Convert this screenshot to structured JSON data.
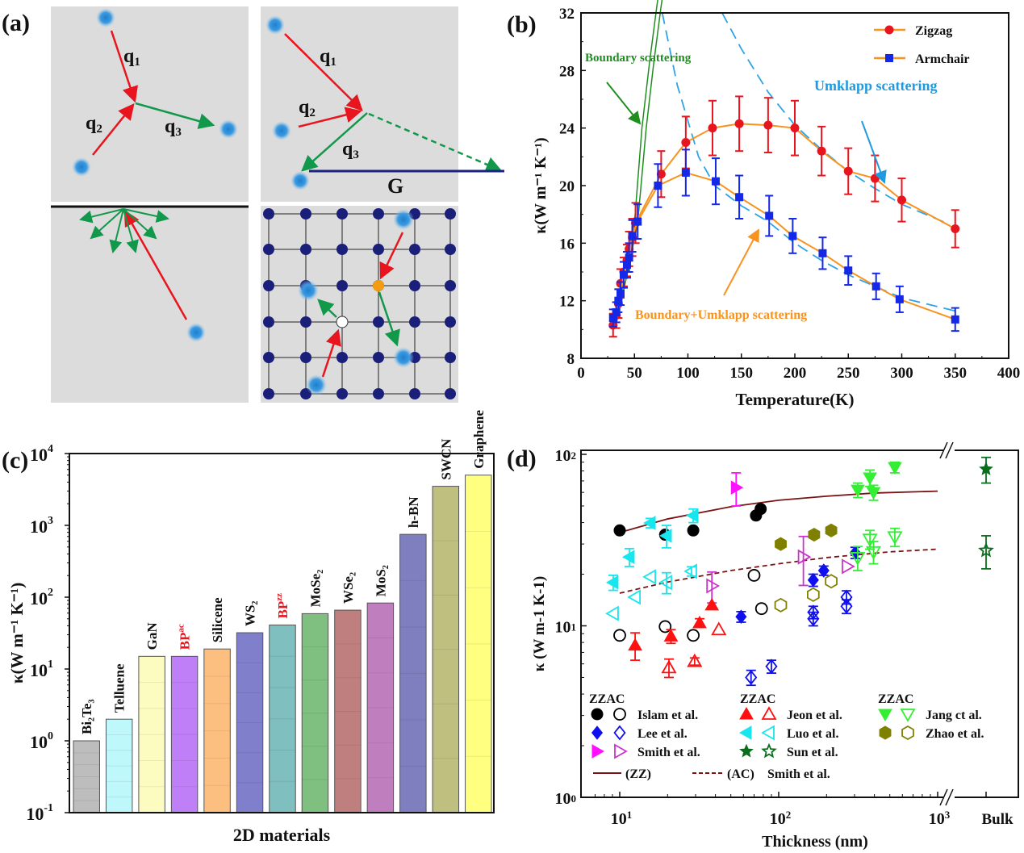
{
  "panel_labels": {
    "a": "(a)",
    "b": "(b)",
    "c": "(c)",
    "d": "(d)"
  },
  "diagram_a": {
    "labels": {
      "q": "q",
      "s1": "1",
      "s2": "2",
      "s3": "3",
      "G": "G"
    },
    "colors": {
      "incoming": "#e8141e",
      "outgoing": "#12984a",
      "reciprocal": "#1a237e",
      "lattice": "#1a1f7a",
      "phonon": "#2f8fd6",
      "defect_orange": "#f39c12"
    }
  },
  "chart_data": [
    {
      "id": "b",
      "type": "line",
      "title": "",
      "xlabel": "Temperature(K)",
      "ylabel": "κ(W m⁻¹ K⁻¹)",
      "xlim": [
        0,
        400
      ],
      "ylim": [
        8,
        32
      ],
      "xticks": [
        "0",
        "50",
        "100",
        "150",
        "200",
        "250",
        "300",
        "350",
        "400"
      ],
      "yticks": [
        "8",
        "12",
        "16",
        "20",
        "24",
        "28",
        "32"
      ],
      "legend_position": "top-right",
      "series": [
        {
          "name": "Zigzag",
          "color": "#e8141e",
          "line_color": "#f7931e",
          "marker": "circle",
          "x": [
            30,
            33,
            35,
            37,
            40,
            43,
            45,
            48,
            51,
            75,
            98,
            123,
            148,
            175,
            200,
            225,
            250,
            275,
            300,
            350
          ],
          "y": [
            10.3,
            11.0,
            11.8,
            13.2,
            14.0,
            14.8,
            15.6,
            16.4,
            17.4,
            20.8,
            23.0,
            24.0,
            24.3,
            24.2,
            24.0,
            22.4,
            21.0,
            20.5,
            19.0,
            17.0
          ],
          "err": [
            0.8,
            0.9,
            1.0,
            1.0,
            1.0,
            1.1,
            1.2,
            1.3,
            1.4,
            1.6,
            1.8,
            1.9,
            1.9,
            1.9,
            1.9,
            1.7,
            1.6,
            1.6,
            1.5,
            1.3
          ]
        },
        {
          "name": "Armchair",
          "color": "#1428e8",
          "line_color": "#f7931e",
          "marker": "square",
          "x": [
            30,
            33,
            35,
            37,
            40,
            43,
            45,
            48,
            53,
            72,
            98,
            126,
            148,
            176,
            198,
            226,
            250,
            276,
            298,
            350
          ],
          "y": [
            10.8,
            11.2,
            12.0,
            12.5,
            13.8,
            14.5,
            15.0,
            16.5,
            17.5,
            20.0,
            20.9,
            20.3,
            19.2,
            17.9,
            16.5,
            15.3,
            14.1,
            13.0,
            12.1,
            10.7
          ],
          "err": [
            0.6,
            0.7,
            0.8,
            0.8,
            0.9,
            0.9,
            1.0,
            1.1,
            1.2,
            1.5,
            1.6,
            1.6,
            1.5,
            1.4,
            1.2,
            1.1,
            1.0,
            0.9,
            0.9,
            0.8
          ]
        }
      ],
      "fits": [
        {
          "name": "boundary-1",
          "color": "#1e8f1e",
          "style": "solid",
          "x": [
            30,
            40,
            50,
            57,
            64,
            71,
            73
          ],
          "y": [
            10.4,
            13.8,
            17.4,
            24.0,
            28.5,
            32.5,
            33.5
          ]
        },
        {
          "name": "boundary-2",
          "color": "#1e8f1e",
          "style": "solid",
          "x": [
            33,
            43,
            53,
            61,
            68,
            75,
            77
          ],
          "y": [
            10.4,
            13.8,
            17.4,
            24.0,
            28.5,
            32.5,
            33.5
          ]
        },
        {
          "name": "umklapp-armchair",
          "color": "#2ea3e6",
          "style": "dashed",
          "x": [
            76,
            90,
            100,
            110,
            125,
            150,
            175,
            200,
            225,
            250,
            275,
            300,
            355
          ],
          "y": [
            32,
            27,
            24.5,
            22,
            20,
            18.6,
            17.5,
            16,
            14.8,
            13.8,
            13,
            12.2,
            11.2
          ]
        },
        {
          "name": "umklapp-zigzag",
          "color": "#2ea3e6",
          "style": "dashed",
          "x": [
            132,
            150,
            175,
            200,
            225,
            250,
            275,
            300,
            345
          ],
          "y": [
            32,
            29.5,
            26.5,
            24.2,
            22.5,
            21,
            19.8,
            18.7,
            17.3
          ]
        }
      ],
      "annotations": [
        {
          "text": "Boundary scattering",
          "color": "#1e8f1e"
        },
        {
          "text": "Umklapp scattering",
          "color": "#1e9be0"
        },
        {
          "text": "Boundary+Umklapp scattering",
          "color": "#f7931e"
        }
      ]
    },
    {
      "id": "c",
      "type": "bar",
      "title": "",
      "xlabel": "2D materials",
      "ylabel": "κ(W m⁻¹ K⁻¹)",
      "yscale": "log",
      "ylim": [
        0.1,
        10000
      ],
      "yticks": [
        {
          "base": "10",
          "exp": "-1"
        },
        {
          "base": "10",
          "exp": "0"
        },
        {
          "base": "10",
          "exp": "1"
        },
        {
          "base": "10",
          "exp": "2"
        },
        {
          "base": "10",
          "exp": "3"
        },
        {
          "base": "10",
          "exp": "4"
        }
      ],
      "categories": [
        {
          "name": "Bi₂Te₃",
          "sup": "",
          "label_color": "#111111",
          "color": "#bdbdbd"
        },
        {
          "name": "Telluene",
          "sup": "",
          "label_color": "#111111",
          "color": "#bff8fb"
        },
        {
          "name": "GaN",
          "sup": "",
          "label_color": "#111111",
          "color": "#fdfcc0"
        },
        {
          "name": "BP",
          "sup": "ac",
          "label_color": "#e8141e",
          "color": "#bf7ff7"
        },
        {
          "name": "Silicene",
          "sup": "",
          "label_color": "#111111",
          "color": "#fdbf80"
        },
        {
          "name": "WS₂",
          "sup": "",
          "label_color": "#111111",
          "color": "#7f7fcc"
        },
        {
          "name": "BP",
          "sup": "zz",
          "label_color": "#e8141e",
          "color": "#7fbfbf"
        },
        {
          "name": "MoSe₂",
          "sup": "",
          "label_color": "#111111",
          "color": "#7fbf7f"
        },
        {
          "name": "WSe₂",
          "sup": "",
          "label_color": "#111111",
          "color": "#bf7f7f"
        },
        {
          "name": "MoS₂",
          "sup": "",
          "label_color": "#111111",
          "color": "#bf7fbf"
        },
        {
          "name": "h-BN",
          "sup": "",
          "label_color": "#111111",
          "color": "#7f7fbf"
        },
        {
          "name": "SWCN",
          "sup": "",
          "label_color": "#111111",
          "color": "#bfbf80"
        },
        {
          "name": "Graphene",
          "sup": "",
          "label_color": "#111111",
          "color": "#ffff80"
        }
      ],
      "values": [
        1,
        2,
        15,
        15,
        19,
        32,
        41,
        59,
        66,
        83,
        750,
        3500,
        5000
      ]
    },
    {
      "id": "d",
      "type": "scatter",
      "title": "",
      "xlabel": "Thickness (nm)",
      "ylabel": "κ (W m-1 K-1)",
      "xscale": "log",
      "yscale": "log",
      "xlim": [
        6,
        1000
      ],
      "ylim": [
        1,
        100
      ],
      "xticks": [
        {
          "base": "10",
          "exp": "1"
        },
        {
          "base": "10",
          "exp": "2"
        },
        {
          "base": "10",
          "exp": "3"
        }
      ],
      "bulk_label": "Bulk",
      "yticks": [
        {
          "base": "10",
          "exp": "0"
        },
        {
          "base": "10",
          "exp": "1"
        },
        {
          "base": "10",
          "exp": "2"
        }
      ],
      "legend_position": "bottom-inside",
      "legend_header": "ZZAC",
      "groups": [
        {
          "name": "Islam et al.",
          "color": "#000000",
          "marker": "circle",
          "zz": [
            [
              10,
              36
            ],
            [
              19.3,
              34
            ],
            [
              29,
              36
            ],
            [
              72,
              44
            ],
            [
              77,
              48
            ]
          ],
          "ac": [
            [
              10,
              8.8
            ],
            [
              19.3,
              9.9
            ],
            [
              29,
              8.8
            ],
            [
              70,
              19.7
            ],
            [
              78,
              12.6
            ]
          ]
        },
        {
          "name": "Lee et al.",
          "color": "#1010ee",
          "marker": "diamond",
          "zz": [
            [
              58,
              11.3,
              0.8
            ],
            [
              165,
              18.5,
              1.5
            ],
            [
              192,
              21,
              1.3
            ],
            [
              303,
              26.7,
              2
            ]
          ],
          "ac": [
            [
              67,
              5.0,
              0.5
            ],
            [
              90,
              5.8,
              0.5
            ],
            [
              165,
              12,
              1
            ],
            [
              165,
              11,
              1
            ],
            [
              267,
              14.7,
              1.3
            ],
            [
              267,
              13,
              1.2
            ]
          ]
        },
        {
          "name": "Smith et al.",
          "color": "#ff10ff",
          "ac_color": "#cc33cc",
          "marker": "tri-right",
          "zz": [
            [
              54,
              64,
              14
            ]
          ],
          "ac": [
            [
              38,
              17.1,
              3.5
            ],
            [
              143,
              25.2,
              8
            ],
            [
              270,
              22.2,
              0
            ]
          ]
        },
        {
          "name": "Jeon et al.",
          "color": "#ff1010",
          "marker": "tri-up",
          "zz": [
            [
              12.5,
              7.7,
              1.4
            ],
            [
              21,
              8.7,
              0.8
            ],
            [
              31.8,
              10.4,
              0.6
            ],
            [
              38,
              13.2,
              0
            ]
          ],
          "ac": [
            [
              20.4,
              5.7,
              0.7
            ],
            [
              29.6,
              6.2,
              0.3
            ],
            [
              42,
              9.5,
              0
            ]
          ]
        },
        {
          "name": "Luo et al.",
          "color": "#18e6ee",
          "marker": "tri-left",
          "zz": [
            [
              9.1,
              17.9,
              1.8
            ],
            [
              11.5,
              25.2,
              3
            ],
            [
              15.6,
              39.8,
              2.5
            ],
            [
              19.7,
              33.5,
              5
            ],
            [
              29,
              44,
              4
            ]
          ],
          "ac": [
            [
              9.1,
              11.8,
              0
            ],
            [
              12.5,
              14.7,
              0
            ],
            [
              15.6,
              19.3,
              0
            ],
            [
              19.7,
              17.9,
              2.5
            ],
            [
              28.3,
              20.8,
              1.3
            ]
          ]
        },
        {
          "name": "Sun et al.",
          "color": "#0a6e1e",
          "marker": "star",
          "zz": [
            [
              "Bulk",
              82,
              14
            ]
          ],
          "ac": [
            [
              "Bulk",
              27.5,
              6
            ]
          ]
        },
        {
          "name": "Jang ct al.",
          "color": "#33ee33",
          "marker": "tri-down",
          "zz": [
            [
              314,
              62,
              6
            ],
            [
              375,
              73,
              8
            ],
            [
              395,
              60,
              6
            ],
            [
              538,
              84,
              6
            ]
          ],
          "ac": [
            [
              314,
              25,
              4
            ],
            [
              375,
              32,
              4
            ],
            [
              395,
              27,
              4
            ],
            [
              538,
              33,
              4
            ]
          ]
        },
        {
          "name": "Zhao et al.",
          "color": "#808000",
          "marker": "hexagon",
          "zz": [
            [
              103,
              30
            ],
            [
              167,
              34
            ],
            [
              214,
              36
            ]
          ],
          "ac": [
            [
              103,
              13.2
            ],
            [
              165,
              15.2
            ],
            [
              214,
              18.2
            ]
          ]
        }
      ],
      "fits": [
        {
          "label": "(ZZ)",
          "color": "#7a1414",
          "style": "solid",
          "points": [
            [
              10,
              35
            ],
            [
              20,
              42
            ],
            [
              50,
              49.5
            ],
            [
              100,
              54
            ],
            [
              200,
              57
            ],
            [
              400,
              59.5
            ],
            [
              1000,
              61
            ]
          ]
        },
        {
          "label": "(AC)",
          "color": "#7a1414",
          "style": "dashed",
          "points": [
            [
              10,
              15.5
            ],
            [
              20,
              18
            ],
            [
              50,
              21
            ],
            [
              100,
              23
            ],
            [
              200,
              25
            ],
            [
              500,
              27
            ],
            [
              1000,
              28
            ]
          ]
        }
      ],
      "fit_source": "Smith et al."
    }
  ]
}
